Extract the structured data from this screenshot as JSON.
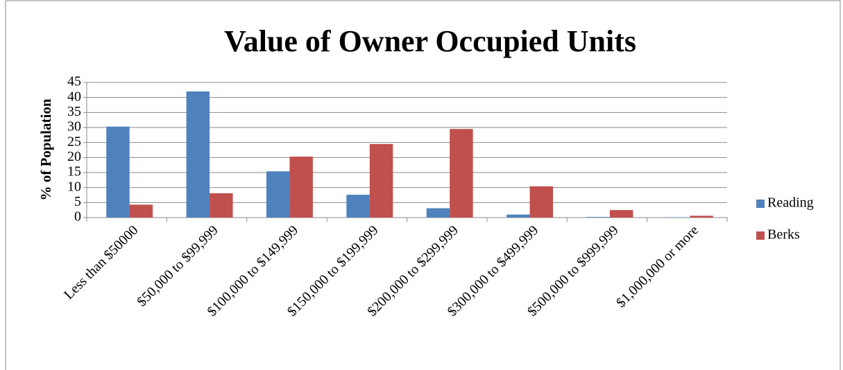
{
  "chart_data": {
    "type": "bar",
    "title": "Value of Owner Occupied Units",
    "y_label": "% of Population",
    "categories": [
      "Less than $50000",
      "$50,000 to $99,999",
      "$100,000 to $149,999",
      "$150,000 to $199,999",
      "$200,000 to $299,999",
      "$300,000 to $499,999",
      "$500,000 to $999,999",
      "$1,000,000 or more"
    ],
    "series": [
      {
        "name": "Reading",
        "color": "#4f81bd",
        "values": [
          30.3,
          42,
          15.4,
          7.6,
          3.1,
          1.0,
          0.2,
          0.1
        ]
      },
      {
        "name": "Berks",
        "color": "#c0504d",
        "values": [
          4.3,
          8.1,
          20.3,
          24.5,
          29.5,
          10.4,
          2.5,
          0.6
        ]
      }
    ],
    "ylim": [
      0,
      45
    ],
    "yticks": [
      0,
      5,
      10,
      15,
      20,
      25,
      30,
      35,
      40,
      45
    ],
    "grid": true,
    "legend": "right"
  }
}
